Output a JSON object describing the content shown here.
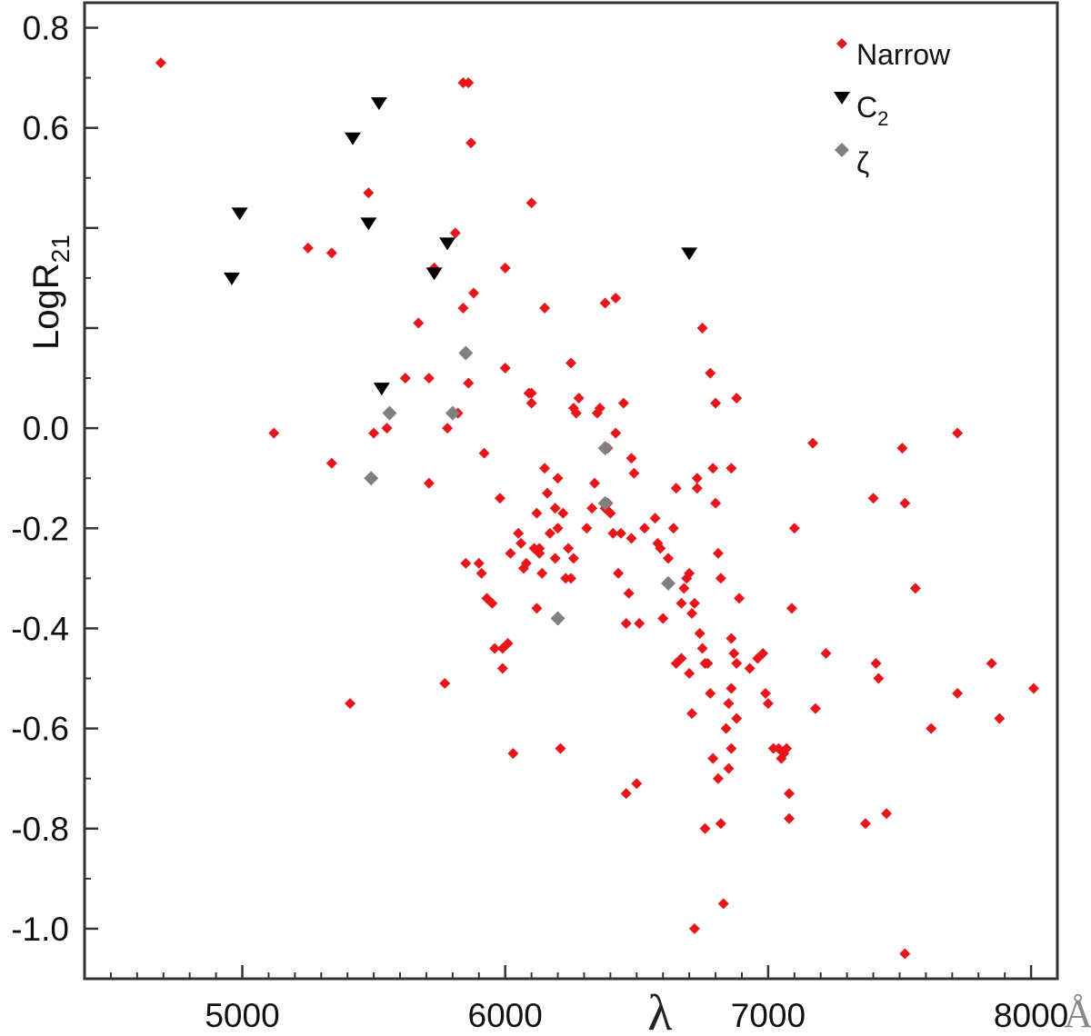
{
  "chart_data": {
    "type": "scatter",
    "title": "",
    "xlabel": "λ",
    "x_unit": "Å",
    "ylabel": "LogR",
    "ylabel_subscript": "21",
    "xlim": [
      4400,
      8100
    ],
    "ylim": [
      -1.1,
      0.85
    ],
    "x_ticks": [
      5000,
      6000,
      7000,
      8000
    ],
    "x_tick_labels": [
      "5000",
      "6000",
      "7000",
      "8000"
    ],
    "y_ticks": [
      0.8,
      0.6,
      0.0,
      -0.2,
      -0.4,
      -0.6,
      -0.8,
      -1.0
    ],
    "y_tick_labels": [
      "0.8",
      "0.6",
      "0.0",
      "-0.2",
      "-0.4",
      "-0.6",
      "-0.8",
      "-1.0"
    ],
    "grid": false,
    "legend_position": "top-right",
    "series": [
      {
        "name": "Narrow",
        "legend_label": "Narrow",
        "marker": "diamond",
        "color": "#e8161b",
        "points": [
          [
            4690,
            0.73
          ],
          [
            5120,
            -0.01
          ],
          [
            5250,
            0.36
          ],
          [
            5340,
            0.35
          ],
          [
            5340,
            -0.07
          ],
          [
            5410,
            -0.55
          ],
          [
            5480,
            0.47
          ],
          [
            5500,
            -0.01
          ],
          [
            5550,
            0.0
          ],
          [
            5620,
            0.1
          ],
          [
            5670,
            0.21
          ],
          [
            5710,
            0.1
          ],
          [
            5710,
            -0.11
          ],
          [
            5730,
            0.32
          ],
          [
            5770,
            -0.51
          ],
          [
            5780,
            0.0
          ],
          [
            5810,
            0.39
          ],
          [
            5820,
            0.03
          ],
          [
            5840,
            0.24
          ],
          [
            5850,
            -0.27
          ],
          [
            5860,
            0.09
          ],
          [
            5840,
            0.69
          ],
          [
            5860,
            0.69
          ],
          [
            5870,
            0.57
          ],
          [
            5880,
            0.27
          ],
          [
            5900,
            -0.27
          ],
          [
            5910,
            -0.29
          ],
          [
            5920,
            -0.05
          ],
          [
            5930,
            -0.34
          ],
          [
            5950,
            -0.35
          ],
          [
            5960,
            -0.44
          ],
          [
            5980,
            -0.14
          ],
          [
            5990,
            -0.44
          ],
          [
            5990,
            -0.48
          ],
          [
            6000,
            0.32
          ],
          [
            6000,
            0.12
          ],
          [
            6010,
            -0.43
          ],
          [
            6020,
            -0.25
          ],
          [
            6030,
            -0.65
          ],
          [
            6050,
            -0.21
          ],
          [
            6060,
            -0.23
          ],
          [
            6070,
            -0.28
          ],
          [
            6080,
            -0.27
          ],
          [
            6090,
            0.07
          ],
          [
            6100,
            0.05
          ],
          [
            6100,
            0.07
          ],
          [
            6100,
            0.45
          ],
          [
            6110,
            -0.24
          ],
          [
            6120,
            -0.36
          ],
          [
            6120,
            -0.17
          ],
          [
            6130,
            -0.24
          ],
          [
            6130,
            -0.25
          ],
          [
            6140,
            -0.29
          ],
          [
            6150,
            0.24
          ],
          [
            6150,
            -0.08
          ],
          [
            6160,
            -0.13
          ],
          [
            6170,
            -0.21
          ],
          [
            6190,
            -0.16
          ],
          [
            6190,
            -0.26
          ],
          [
            6200,
            -0.2
          ],
          [
            6200,
            -0.1
          ],
          [
            6210,
            -0.64
          ],
          [
            6220,
            -0.17
          ],
          [
            6230,
            -0.3
          ],
          [
            6240,
            -0.24
          ],
          [
            6250,
            0.13
          ],
          [
            6250,
            -0.3
          ],
          [
            6260,
            -0.26
          ],
          [
            6260,
            0.04
          ],
          [
            6270,
            0.03
          ],
          [
            6280,
            0.06
          ],
          [
            6310,
            -0.2
          ],
          [
            6330,
            -0.16
          ],
          [
            6340,
            -0.11
          ],
          [
            6350,
            0.03
          ],
          [
            6360,
            0.04
          ],
          [
            6380,
            0.25
          ],
          [
            6380,
            -0.16
          ],
          [
            6390,
            -0.15
          ],
          [
            6390,
            -0.04
          ],
          [
            6400,
            -0.17
          ],
          [
            6410,
            -0.21
          ],
          [
            6420,
            0.26
          ],
          [
            6420,
            -0.01
          ],
          [
            6430,
            -0.29
          ],
          [
            6440,
            -0.21
          ],
          [
            6450,
            0.05
          ],
          [
            6460,
            -0.39
          ],
          [
            6460,
            -0.73
          ],
          [
            6470,
            -0.33
          ],
          [
            6480,
            -0.06
          ],
          [
            6480,
            -0.22
          ],
          [
            6490,
            -0.09
          ],
          [
            6500,
            -0.71
          ],
          [
            6510,
            -0.39
          ],
          [
            6530,
            -0.2
          ],
          [
            6570,
            -0.18
          ],
          [
            6580,
            -0.23
          ],
          [
            6590,
            -0.24
          ],
          [
            6600,
            -0.38
          ],
          [
            6620,
            -0.26
          ],
          [
            6640,
            -0.2
          ],
          [
            6650,
            -0.47
          ],
          [
            6650,
            -0.12
          ],
          [
            6670,
            -0.35
          ],
          [
            6670,
            -0.46
          ],
          [
            6680,
            -0.32
          ],
          [
            6690,
            -0.3
          ],
          [
            6700,
            -0.29
          ],
          [
            6700,
            -0.49
          ],
          [
            6710,
            -0.57
          ],
          [
            6710,
            -0.37
          ],
          [
            6720,
            -0.35
          ],
          [
            6730,
            -0.12
          ],
          [
            6730,
            -0.1
          ],
          [
            6740,
            -0.41
          ],
          [
            6750,
            -0.44
          ],
          [
            6760,
            -0.47
          ],
          [
            6760,
            -0.8
          ],
          [
            6770,
            -0.47
          ],
          [
            6780,
            0.11
          ],
          [
            6780,
            -0.53
          ],
          [
            6790,
            -0.08
          ],
          [
            6790,
            -0.66
          ],
          [
            6800,
            0.05
          ],
          [
            6800,
            -0.15
          ],
          [
            6810,
            -0.25
          ],
          [
            6810,
            -0.7
          ],
          [
            6820,
            -0.79
          ],
          [
            6820,
            -0.3
          ],
          [
            6830,
            -0.95
          ],
          [
            6840,
            -0.6
          ],
          [
            6850,
            -0.55
          ],
          [
            6850,
            -0.68
          ],
          [
            6860,
            -0.42
          ],
          [
            6860,
            -0.52
          ],
          [
            6860,
            -0.08
          ],
          [
            6860,
            -0.64
          ],
          [
            6870,
            -0.45
          ],
          [
            6880,
            0.06
          ],
          [
            6880,
            -0.47
          ],
          [
            6880,
            -0.58
          ],
          [
            6890,
            -0.34
          ],
          [
            6720,
            -1.0
          ],
          [
            6930,
            -0.48
          ],
          [
            6960,
            -0.46
          ],
          [
            6980,
            -0.45
          ],
          [
            6990,
            -0.53
          ],
          [
            7000,
            -0.55
          ],
          [
            7020,
            -0.64
          ],
          [
            7040,
            -0.64
          ],
          [
            7050,
            -0.66
          ],
          [
            7060,
            -0.65
          ],
          [
            7070,
            -0.64
          ],
          [
            7080,
            -0.78
          ],
          [
            7080,
            -0.73
          ],
          [
            7090,
            -0.36
          ],
          [
            7100,
            -0.2
          ],
          [
            7170,
            -0.03
          ],
          [
            7180,
            -0.56
          ],
          [
            7220,
            -0.45
          ],
          [
            7370,
            -0.79
          ],
          [
            7400,
            -0.14
          ],
          [
            7410,
            -0.47
          ],
          [
            7420,
            -0.5
          ],
          [
            7450,
            -0.77
          ],
          [
            7510,
            -0.04
          ],
          [
            7520,
            -0.15
          ],
          [
            7520,
            -1.05
          ],
          [
            7560,
            -0.32
          ],
          [
            7620,
            -0.6
          ],
          [
            7720,
            -0.01
          ],
          [
            7720,
            -0.53
          ],
          [
            7850,
            -0.47
          ],
          [
            7880,
            -0.58
          ],
          [
            8010,
            -0.52
          ],
          [
            6750,
            0.2
          ]
        ]
      },
      {
        "name": "C2",
        "legend_label": "C",
        "legend_subscript": "2",
        "marker": "triangle-down",
        "color": "#000000",
        "points": [
          [
            4960,
            0.3
          ],
          [
            4990,
            0.43
          ],
          [
            5420,
            0.58
          ],
          [
            5480,
            0.41
          ],
          [
            5520,
            0.65
          ],
          [
            5530,
            0.08
          ],
          [
            5730,
            0.31
          ],
          [
            5780,
            0.37
          ],
          [
            6700,
            0.35
          ]
        ]
      },
      {
        "name": "ζ",
        "legend_label": "ζ",
        "marker": "diamond",
        "color": "#808080",
        "points": [
          [
            5490,
            -0.1
          ],
          [
            5560,
            0.03
          ],
          [
            5800,
            0.03
          ],
          [
            5850,
            0.15
          ],
          [
            6200,
            -0.38
          ],
          [
            6380,
            -0.04
          ],
          [
            6380,
            -0.15
          ],
          [
            6620,
            -0.31
          ]
        ]
      }
    ]
  }
}
